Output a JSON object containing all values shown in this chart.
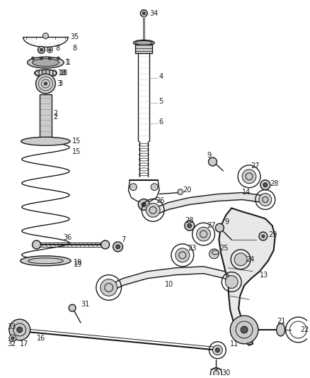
{
  "bg_color": "#ffffff",
  "line_color": "#1a1a1a",
  "label_color": "#1a1a1a",
  "gray": "#888888",
  "light_gray": "#cccccc",
  "dark_gray": "#555555",
  "figsize": [
    4.38,
    5.33
  ],
  "dpi": 100
}
